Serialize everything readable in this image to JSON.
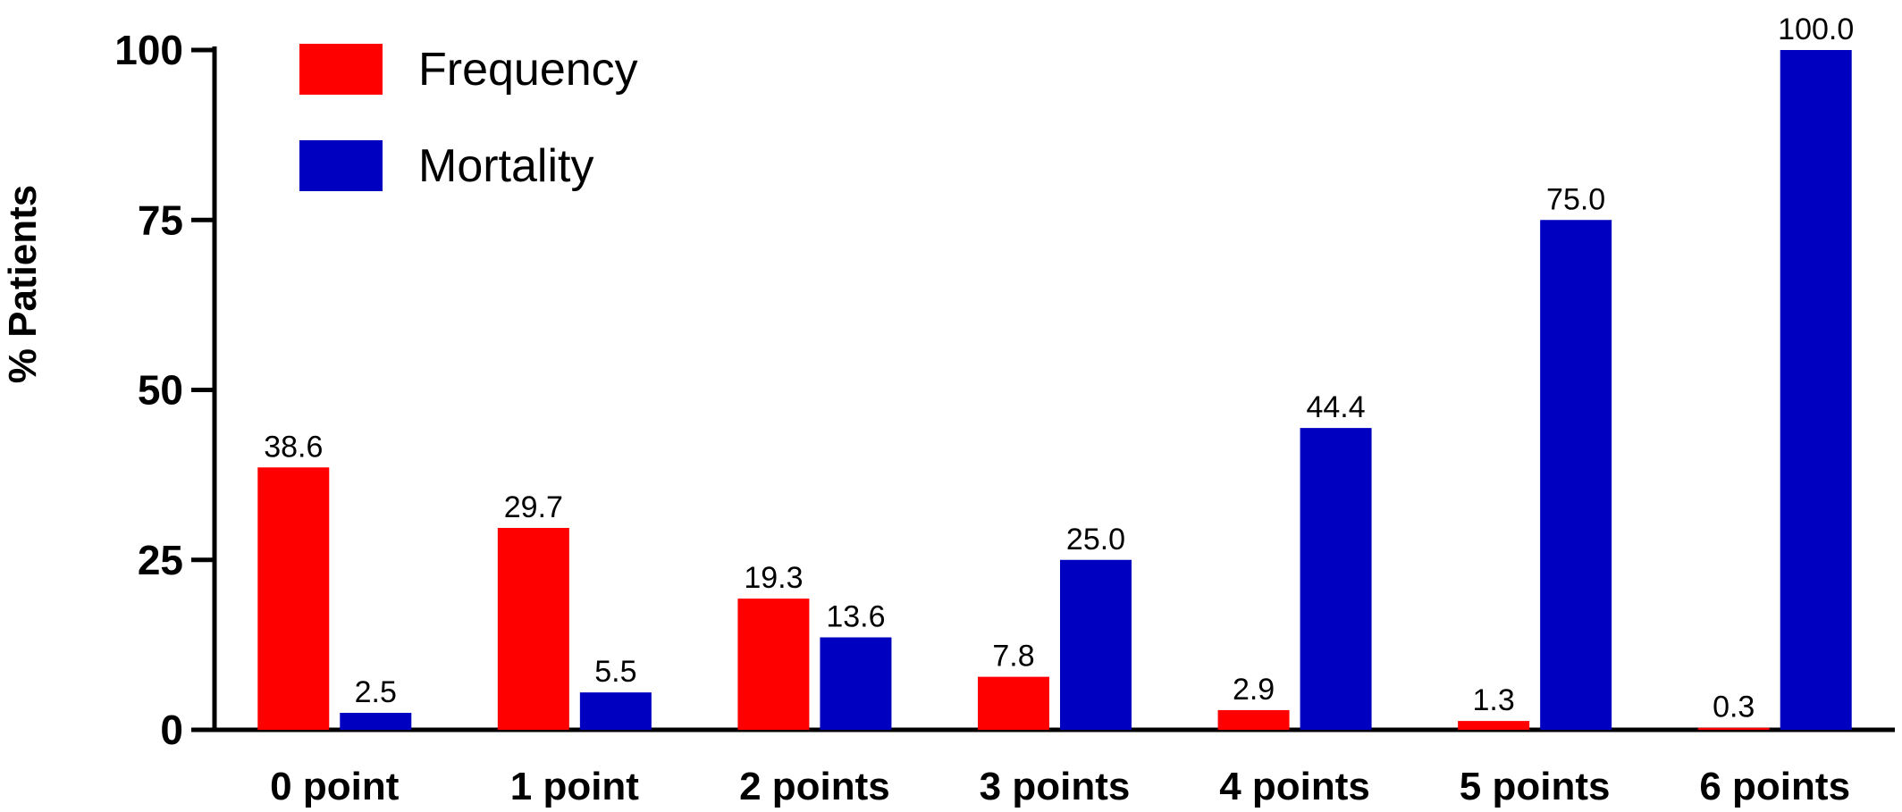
{
  "chart_data": {
    "type": "bar",
    "title": "",
    "xlabel": "",
    "ylabel": "% Patients",
    "ylim": [
      0,
      100
    ],
    "yticks": [
      "0",
      "25",
      "50",
      "75",
      "100"
    ],
    "grid": false,
    "legend_position": "top-left",
    "categories": [
      "0 point",
      "1 point",
      "2 points",
      "3 points",
      "4 points",
      "5 points",
      "6 points"
    ],
    "series": [
      {
        "name": "Frequency",
        "color": "#ff0000",
        "values": [
          38.6,
          29.7,
          19.3,
          7.8,
          2.9,
          1.3,
          0.3
        ],
        "labels": [
          "38.6",
          "29.7",
          "19.3",
          "7.8",
          "2.9",
          "1.3",
          "0.3"
        ]
      },
      {
        "name": "Mortality",
        "color": "#0000c0",
        "values": [
          2.5,
          5.5,
          13.6,
          25.0,
          44.4,
          75.0,
          100.0
        ],
        "labels": [
          "2.5",
          "5.5",
          "13.6",
          "25.0",
          "44.4",
          "75.0",
          "100.0"
        ]
      }
    ]
  }
}
